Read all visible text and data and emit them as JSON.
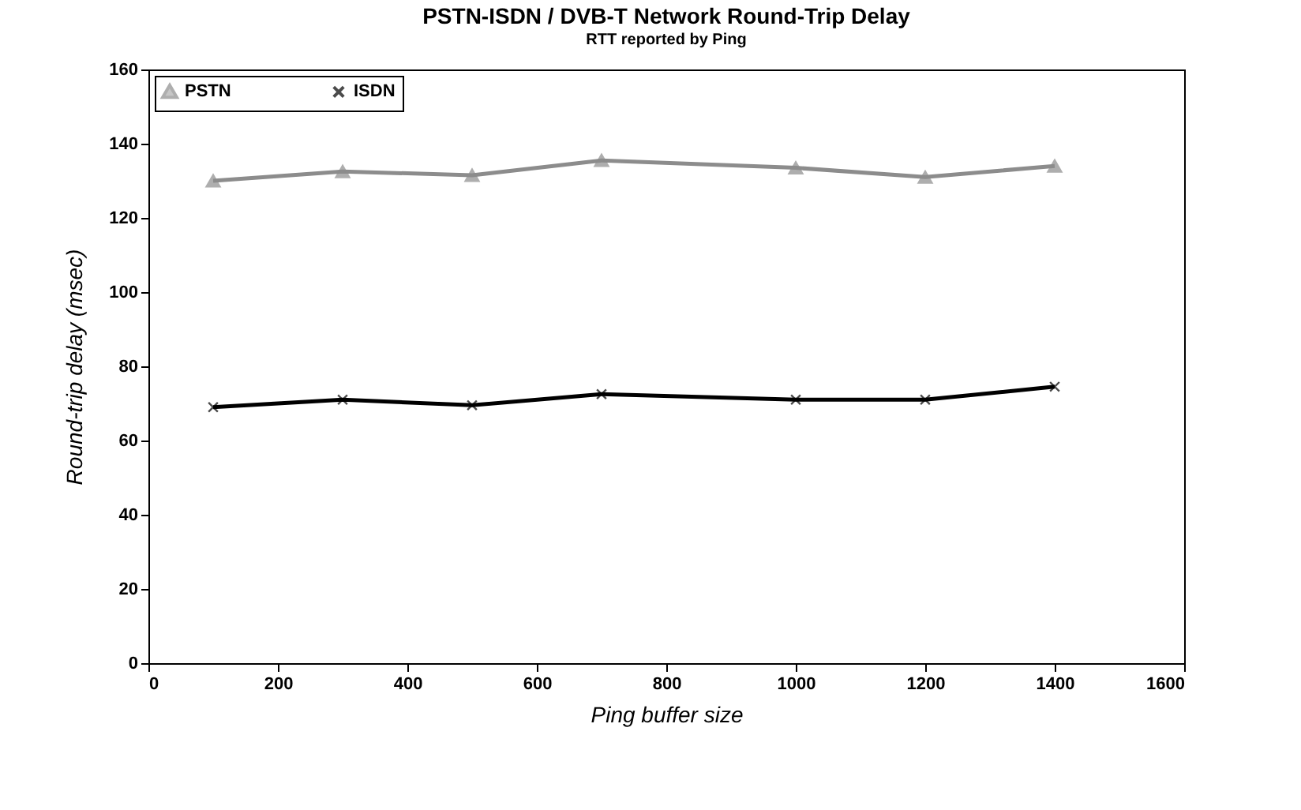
{
  "chart_data": {
    "type": "line",
    "title": "PSTN-ISDN / DVB-T Network Round-Trip Delay",
    "subtitle": "RTT reported by Ping",
    "xlabel": "Ping buffer size",
    "ylabel": "Round-trip delay (msec)",
    "x": [
      100,
      300,
      500,
      700,
      1000,
      1200,
      1400
    ],
    "series": [
      {
        "name": "PSTN",
        "color": "#8c8c8c",
        "marker": "triangle",
        "values": [
          130,
          132.5,
          131.5,
          135.5,
          133.5,
          131,
          134
        ]
      },
      {
        "name": "ISDN",
        "color": "#000000",
        "marker": "cross",
        "values": [
          69,
          71,
          69.5,
          72.5,
          71,
          71,
          74.5
        ]
      }
    ],
    "xlim": [
      0,
      1600
    ],
    "xticks": [
      0,
      200,
      400,
      600,
      800,
      1000,
      1200,
      1400,
      1600
    ],
    "ylim": [
      0,
      160
    ],
    "yticks": [
      0,
      20,
      40,
      60,
      80,
      100,
      120,
      140,
      160
    ],
    "grid": false,
    "legend": "top left",
    "line_style": "solid"
  }
}
